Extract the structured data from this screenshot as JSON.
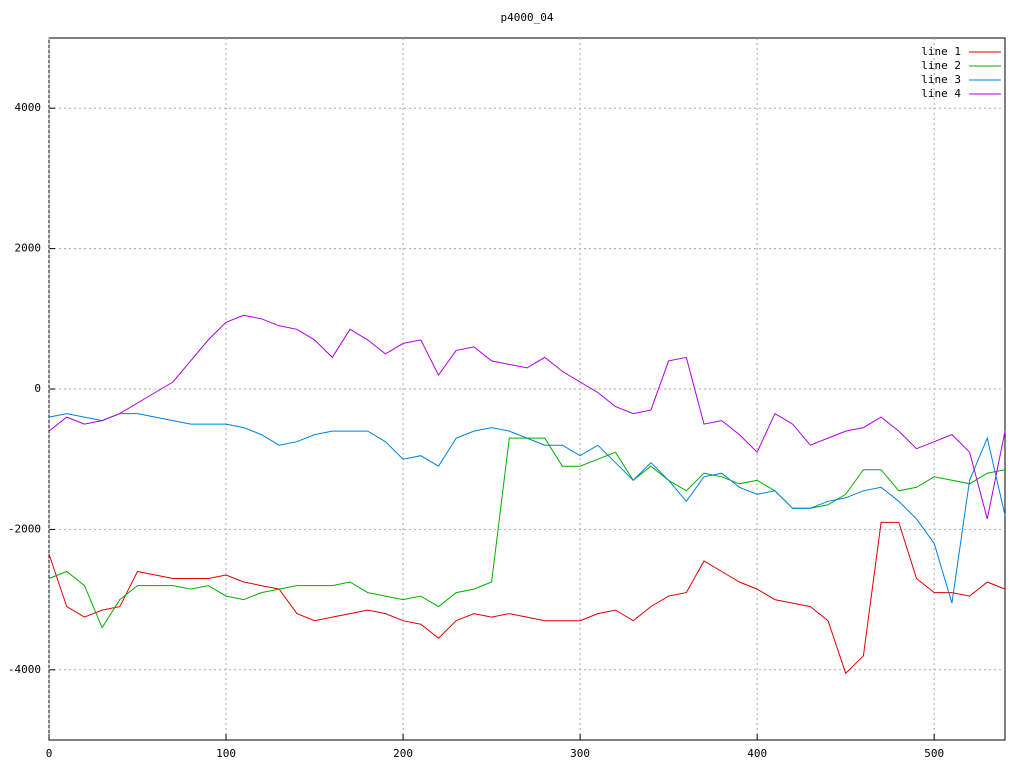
{
  "chart_data": {
    "type": "line",
    "title": "p4000_04",
    "x": [
      0,
      10,
      20,
      30,
      40,
      50,
      60,
      70,
      80,
      90,
      100,
      110,
      120,
      130,
      140,
      150,
      160,
      170,
      180,
      190,
      200,
      210,
      220,
      230,
      240,
      250,
      260,
      270,
      280,
      290,
      300,
      310,
      320,
      330,
      340,
      350,
      360,
      370,
      380,
      390,
      400,
      410,
      420,
      430,
      440,
      450,
      460,
      470,
      480,
      490,
      500,
      510,
      520,
      530,
      540
    ],
    "series": [
      {
        "name": "line 1",
        "color": "#e00000",
        "values": [
          -2350,
          -3100,
          -3250,
          -3150,
          -3100,
          -2600,
          -2650,
          -2700,
          -2700,
          -2700,
          -2650,
          -2750,
          -2800,
          -2850,
          -3200,
          -3300,
          -3250,
          -3200,
          -3150,
          -3200,
          -3300,
          -3350,
          -3550,
          -3300,
          -3200,
          -3250,
          -3200,
          -3250,
          -3300,
          -3300,
          -3300,
          -3200,
          -3150,
          -3300,
          -3100,
          -2950,
          -2900,
          -2450,
          -2600,
          -2750,
          -2850,
          -3000,
          -3050,
          -3100,
          -3300,
          -4050,
          -3800,
          -1900,
          -1900,
          -2700,
          -2900,
          -2900,
          -2950,
          -2750,
          -2850
        ]
      },
      {
        "name": "line 2",
        "color": "#00b000",
        "values": [
          -2700,
          -2600,
          -2800,
          -3400,
          -3000,
          -2800,
          -2800,
          -2800,
          -2850,
          -2800,
          -2950,
          -3000,
          -2900,
          -2850,
          -2800,
          -2800,
          -2800,
          -2750,
          -2900,
          -2950,
          -3000,
          -2950,
          -3100,
          -2900,
          -2850,
          -2750,
          -700,
          -700,
          -700,
          -1100,
          -1100,
          -1000,
          -900,
          -1300,
          -1100,
          -1300,
          -1450,
          -1200,
          -1250,
          -1350,
          -1300,
          -1450,
          -1700,
          -1700,
          -1650,
          -1500,
          -1150,
          -1150,
          -1450,
          -1400,
          -1250,
          -1300,
          -1350,
          -1200,
          -1150
        ]
      },
      {
        "name": "line 3",
        "color": "#0080e0",
        "values": [
          -400,
          -350,
          -400,
          -450,
          -350,
          -350,
          -400,
          -450,
          -500,
          -500,
          -500,
          -550,
          -650,
          -800,
          -750,
          -650,
          -600,
          -600,
          -600,
          -750,
          -1000,
          -950,
          -1100,
          -700,
          -600,
          -550,
          -600,
          -700,
          -800,
          -800,
          -950,
          -800,
          -1050,
          -1300,
          -1050,
          -1300,
          -1600,
          -1250,
          -1200,
          -1400,
          -1500,
          -1450,
          -1700,
          -1700,
          -1600,
          -1550,
          -1450,
          -1400,
          -1600,
          -1850,
          -2200,
          -3050,
          -1300,
          -700,
          -1800
        ]
      },
      {
        "name": "line 4",
        "color": "#b000e0",
        "values": [
          -600,
          -400,
          -500,
          -450,
          -350,
          -200,
          -50,
          100,
          400,
          700,
          950,
          1050,
          1000,
          900,
          850,
          700,
          450,
          850,
          700,
          500,
          650,
          700,
          200,
          550,
          600,
          400,
          350,
          300,
          450,
          250,
          100,
          -50,
          -250,
          -350,
          -300,
          400,
          450,
          -500,
          -450,
          -650,
          -900,
          -350,
          -500,
          -800,
          -700,
          -600,
          -550,
          -400,
          -600,
          -850,
          -750,
          -650,
          -900,
          -1850,
          -600
        ]
      }
    ],
    "xlim": [
      0,
      540
    ],
    "ylim": [
      -5000,
      5000
    ],
    "xticks": [
      0,
      100,
      200,
      300,
      400,
      500
    ],
    "yticks": [
      -4000,
      -2000,
      0,
      2000,
      4000
    ],
    "grid": true,
    "legend": "top-right"
  }
}
